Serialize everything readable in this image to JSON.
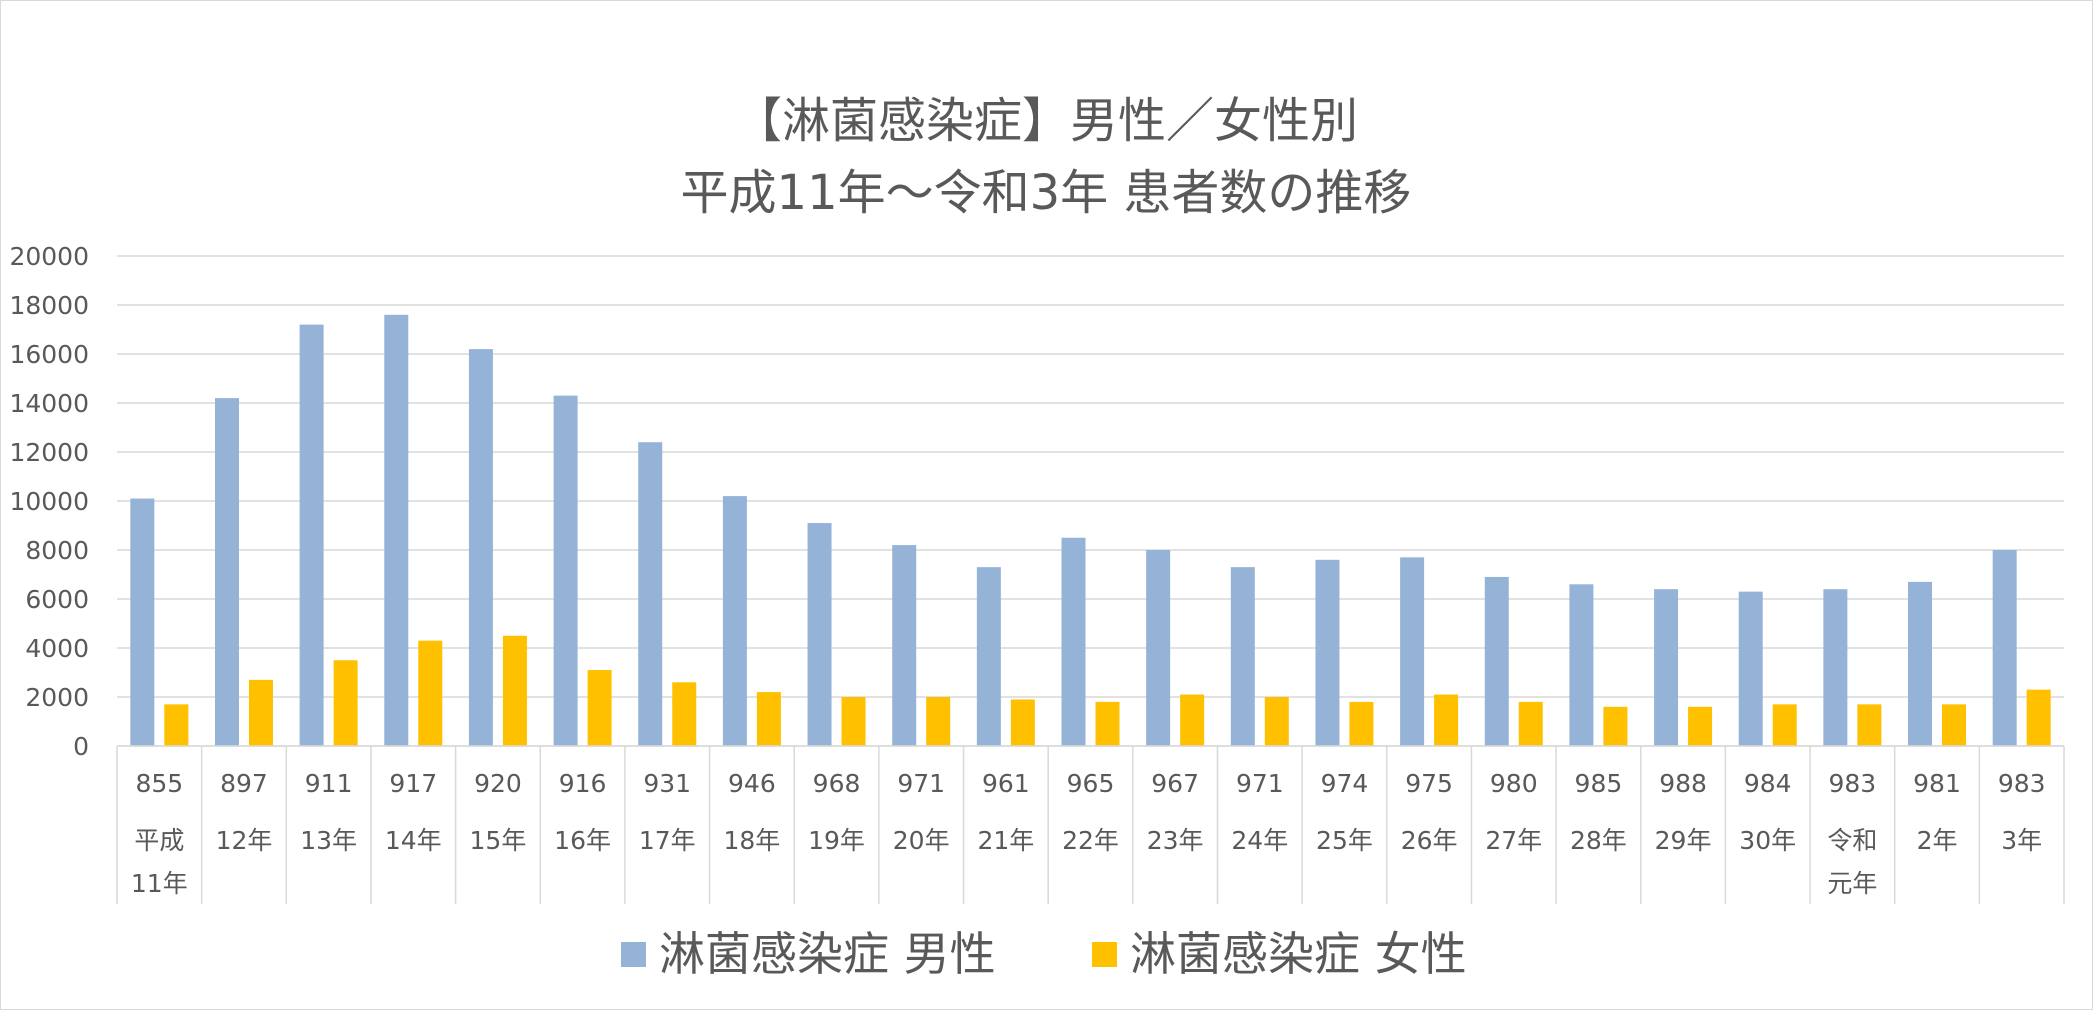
{
  "chart_data": {
    "type": "bar",
    "title": [
      "【淋菌感染症】男性／女性別",
      "平成11年～令和3年 患者数の推移"
    ],
    "xlabel": "",
    "ylabel": "",
    "ylim": [
      0,
      20000
    ],
    "yticks": [
      "0",
      "2000",
      "4000",
      "6000",
      "8000",
      "10000",
      "12000",
      "14000",
      "16000",
      "18000",
      "20000"
    ],
    "grid": true,
    "legend_position": "bottom",
    "x_codes": [
      "855",
      "897",
      "911",
      "917",
      "920",
      "916",
      "931",
      "946",
      "968",
      "971",
      "961",
      "965",
      "967",
      "971",
      "974",
      "975",
      "980",
      "985",
      "988",
      "984",
      "983",
      "981",
      "983"
    ],
    "categories": [
      [
        "平成",
        "11年"
      ],
      [
        "12年"
      ],
      [
        "13年"
      ],
      [
        "14年"
      ],
      [
        "15年"
      ],
      [
        "16年"
      ],
      [
        "17年"
      ],
      [
        "18年"
      ],
      [
        "19年"
      ],
      [
        "20年"
      ],
      [
        "21年"
      ],
      [
        "22年"
      ],
      [
        "23年"
      ],
      [
        "24年"
      ],
      [
        "25年"
      ],
      [
        "26年"
      ],
      [
        "27年"
      ],
      [
        "28年"
      ],
      [
        "29年"
      ],
      [
        "30年"
      ],
      [
        "令和",
        "元年"
      ],
      [
        "2年"
      ],
      [
        "3年"
      ]
    ],
    "series": [
      {
        "name": "淋菌感染症 男性",
        "color": "#95b3d7",
        "values": [
          10100,
          14200,
          17200,
          17600,
          16200,
          14300,
          12400,
          10200,
          9100,
          8200,
          7300,
          8500,
          8000,
          7300,
          7600,
          7700,
          6900,
          6600,
          6400,
          6300,
          6400,
          6700,
          8000
        ]
      },
      {
        "name": "淋菌感染症 女性",
        "color": "#ffc000",
        "values": [
          1700,
          2700,
          3500,
          4300,
          4500,
          3100,
          2600,
          2200,
          2000,
          2000,
          1900,
          1800,
          2100,
          2000,
          1800,
          2100,
          1800,
          1600,
          1600,
          1700,
          1700,
          1700,
          2300
        ]
      }
    ]
  }
}
